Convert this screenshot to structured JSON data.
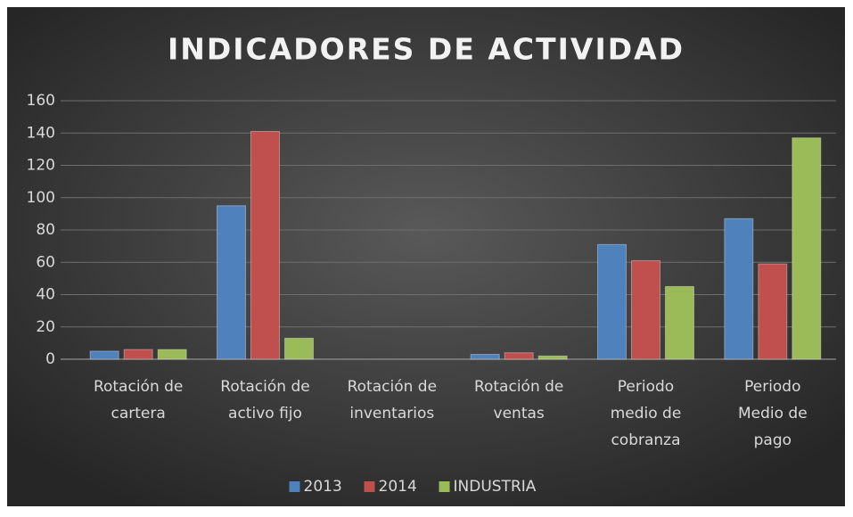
{
  "chart_data": {
    "type": "bar",
    "title": "INDICADORES DE ACTIVIDAD",
    "categories": [
      "Rotación de cartera",
      "Rotación de activo fijo",
      "Rotación de inventarios",
      "Rotación de ventas",
      "Periodo medio de cobranza",
      "Periodo Medio de pago"
    ],
    "series": [
      {
        "name": "2013",
        "color": "#4f81bd",
        "values": [
          5,
          95,
          0,
          3,
          71,
          87
        ]
      },
      {
        "name": "2014",
        "color": "#c0504d",
        "values": [
          6,
          141,
          0,
          4,
          61,
          59
        ]
      },
      {
        "name": "INDUSTRIA",
        "color": "#9bbb59",
        "values": [
          6,
          13,
          0,
          2,
          45,
          137
        ]
      }
    ],
    "ylim": [
      0,
      160
    ],
    "yticks": [
      0,
      20,
      40,
      60,
      80,
      100,
      120,
      140,
      160
    ],
    "grid": true,
    "legend": "bottom"
  }
}
